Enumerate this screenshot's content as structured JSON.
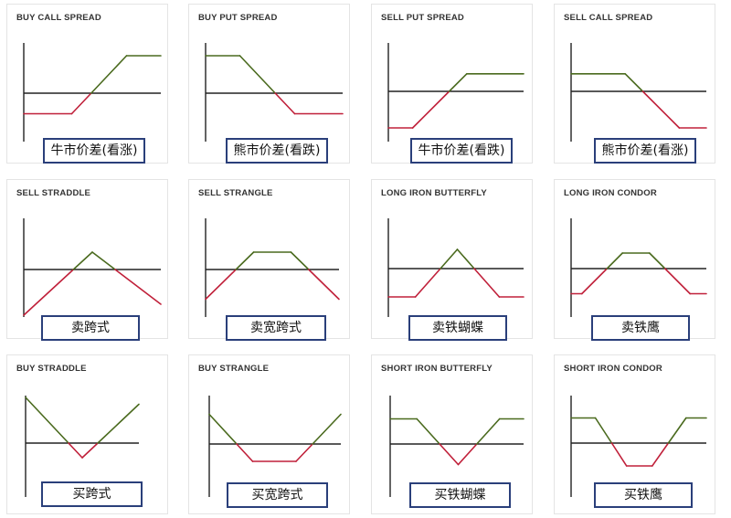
{
  "colors": {
    "profit": "#4a6a1e",
    "loss": "#c0203a",
    "axis": "#222222",
    "label_border": "#2a3f7a"
  },
  "strategies": [
    {
      "title": "BUY CALL SPREAD",
      "label": "牛市价差(看涨)",
      "payoff": [
        [
          0.0,
          -0.55
        ],
        [
          0.35,
          -0.55
        ],
        [
          0.75,
          1.0
        ],
        [
          1.0,
          1.0
        ]
      ]
    },
    {
      "title": "BUY PUT SPREAD",
      "label": "熊市价差(看跌)",
      "payoff": [
        [
          0.0,
          1.0
        ],
        [
          0.25,
          1.0
        ],
        [
          0.65,
          -0.55
        ],
        [
          1.0,
          -0.55
        ]
      ]
    },
    {
      "title": "SELL PUT SPREAD",
      "label": "牛市价差(看跌)",
      "payoff": [
        [
          0.0,
          -1.0
        ],
        [
          0.18,
          -1.0
        ],
        [
          0.58,
          0.48
        ],
        [
          1.0,
          0.48
        ]
      ]
    },
    {
      "title": "SELL CALL SPREAD",
      "label": "熊市价差(看涨)",
      "payoff": [
        [
          0.0,
          0.48
        ],
        [
          0.4,
          0.48
        ],
        [
          0.8,
          -1.0
        ],
        [
          1.0,
          -1.0
        ]
      ]
    },
    {
      "title": "SELL STRADDLE",
      "label": "卖跨式",
      "payoff": [
        [
          0.0,
          -1.0
        ],
        [
          0.5,
          0.38
        ],
        [
          1.0,
          -0.76
        ]
      ]
    },
    {
      "title": "SELL STRANGLE",
      "label": "卖宽跨式",
      "payoff": [
        [
          0.0,
          -0.65
        ],
        [
          0.36,
          0.38
        ],
        [
          0.64,
          0.38
        ],
        [
          1.0,
          -0.65
        ]
      ]
    },
    {
      "title": "LONG IRON BUTTERFLY",
      "label": "卖铁蝴蝶",
      "payoff": [
        [
          0.0,
          -0.62
        ],
        [
          0.2,
          -0.62
        ],
        [
          0.51,
          0.42
        ],
        [
          0.82,
          -0.62
        ],
        [
          1.0,
          -0.62
        ]
      ]
    },
    {
      "title": "LONG IRON CONDOR",
      "label": "卖铁鹰",
      "payoff": [
        [
          0.0,
          -0.55
        ],
        [
          0.08,
          -0.55
        ],
        [
          0.38,
          0.34
        ],
        [
          0.58,
          0.34
        ],
        [
          0.88,
          -0.55
        ],
        [
          1.0,
          -0.55
        ]
      ]
    },
    {
      "title": "BUY STRADDLE",
      "label": "买跨式",
      "payoff": [
        [
          0.0,
          1.0
        ],
        [
          0.5,
          -0.32
        ],
        [
          1.0,
          0.85
        ]
      ]
    },
    {
      "title": "BUY STRANGLE",
      "label": "买宽跨式",
      "payoff": [
        [
          0.0,
          0.65
        ],
        [
          0.33,
          -0.38
        ],
        [
          0.66,
          -0.38
        ],
        [
          1.0,
          0.65
        ]
      ]
    },
    {
      "title": "SHORT IRON BUTTERFLY",
      "label": "买铁蝴蝶",
      "payoff": [
        [
          0.0,
          0.55
        ],
        [
          0.2,
          0.55
        ],
        [
          0.51,
          -0.45
        ],
        [
          0.82,
          0.55
        ],
        [
          1.0,
          0.55
        ]
      ]
    },
    {
      "title": "SHORT IRON CONDOR",
      "label": "买铁鹰",
      "payoff": [
        [
          0.0,
          0.55
        ],
        [
          0.18,
          0.55
        ],
        [
          0.41,
          -0.5
        ],
        [
          0.6,
          -0.5
        ],
        [
          0.85,
          0.55
        ],
        [
          1.0,
          0.55
        ]
      ]
    }
  ]
}
